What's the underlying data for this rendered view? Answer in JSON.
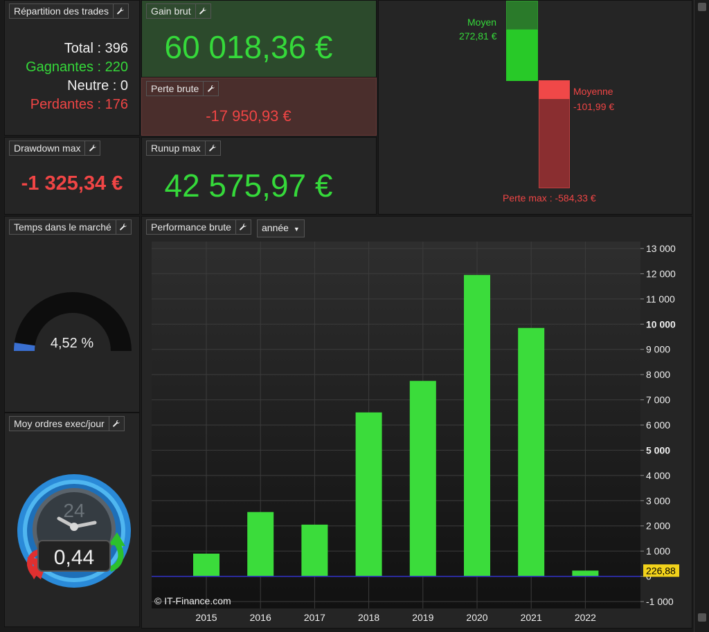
{
  "repartition": {
    "title": "Répartition des trades",
    "total": "Total : 396",
    "gagnantes": "Gagnantes : 220",
    "neutre": "Neutre : 0",
    "perdantes": "Perdantes : 176"
  },
  "gain_brut": {
    "title": "Gain brut",
    "value": "60 018,36 €"
  },
  "perte_brute": {
    "title": "Perte brute",
    "value": "-17 950,93 €"
  },
  "drawdown": {
    "title": "Drawdown max",
    "value": "-1 325,34 €"
  },
  "runup": {
    "title": "Runup max",
    "value": "42 575,97 €"
  },
  "trade_stats": {
    "moyen_label": "Moyen",
    "moyen_value": "272,81 €",
    "moyenne_label": "Moyenne",
    "moyenne_value": "-101,99 €",
    "perte_max": "Perte max : -584,33 €"
  },
  "temps_marche": {
    "title": "Temps dans le marché",
    "value": "4,52 %",
    "fraction": 0.0452
  },
  "moy_ordres": {
    "title": "Moy ordres exec/jour",
    "value": "0,44",
    "clock_label": "24"
  },
  "performance": {
    "title": "Performance brute",
    "period": "année",
    "watermark": "© IT-Finance.com",
    "last_value_label": "226,88"
  },
  "colors": {
    "green": "#35d93a",
    "red": "#f04545",
    "axis_line": "#3333cc",
    "label_bg": "#f2d21b"
  },
  "chart_data": {
    "type": "bar",
    "categories": [
      "2015",
      "2016",
      "2017",
      "2018",
      "2019",
      "2020",
      "2021",
      "2022"
    ],
    "values": [
      900,
      2550,
      2050,
      6500,
      7750,
      11950,
      9850,
      227
    ],
    "ylim": [
      -1000,
      13000
    ],
    "yticks": [
      -1000,
      0,
      1000,
      2000,
      3000,
      4000,
      5000,
      6000,
      7000,
      8000,
      9000,
      10000,
      11000,
      12000,
      13000
    ],
    "ytick_labels": [
      "-1 000",
      "0",
      "1 000",
      "2 000",
      "3 000",
      "4 000",
      "5 000",
      "6 000",
      "7 000",
      "8 000",
      "9 000",
      "10 000",
      "11 000",
      "12 000",
      "13 000"
    ],
    "bold_ticks": [
      "5 000",
      "10 000"
    ],
    "grid": true,
    "title": "",
    "xlabel": "",
    "ylabel": ""
  }
}
